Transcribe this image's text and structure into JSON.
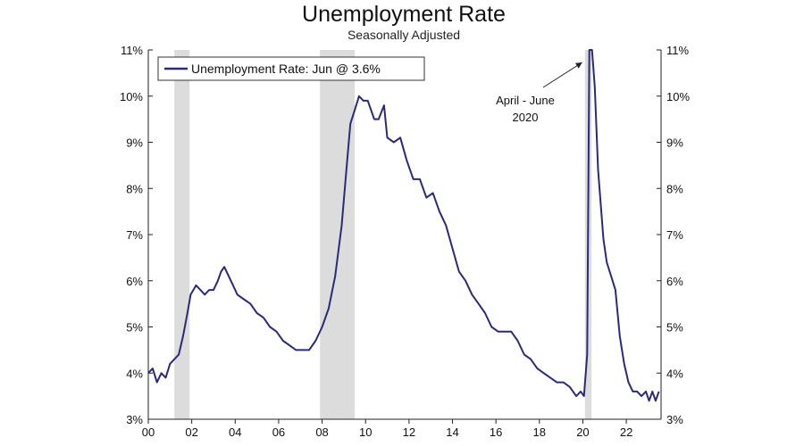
{
  "chart_data": {
    "type": "line",
    "title": "Unemployment Rate",
    "subtitle": "Seasonally Adjusted",
    "xlabel": "",
    "ylabel": "",
    "xlim": [
      2000,
      2023.6
    ],
    "ylim": [
      3,
      11
    ],
    "x_ticks": [
      {
        "value": 2000,
        "label": "00"
      },
      {
        "value": 2002,
        "label": "02"
      },
      {
        "value": 2004,
        "label": "04"
      },
      {
        "value": 2006,
        "label": "06"
      },
      {
        "value": 2008,
        "label": "08"
      },
      {
        "value": 2010,
        "label": "10"
      },
      {
        "value": 2012,
        "label": "12"
      },
      {
        "value": 2014,
        "label": "14"
      },
      {
        "value": 2016,
        "label": "16"
      },
      {
        "value": 2018,
        "label": "18"
      },
      {
        "value": 2020,
        "label": "20"
      },
      {
        "value": 2022,
        "label": "22"
      }
    ],
    "y_ticks": [
      {
        "value": 3,
        "label": "3%"
      },
      {
        "value": 4,
        "label": "4%"
      },
      {
        "value": 5,
        "label": "5%"
      },
      {
        "value": 6,
        "label": "6%"
      },
      {
        "value": 7,
        "label": "7%"
      },
      {
        "value": 8,
        "label": "8%"
      },
      {
        "value": 9,
        "label": "9%"
      },
      {
        "value": 10,
        "label": "10%"
      },
      {
        "value": 11,
        "label": "11%"
      }
    ],
    "grid": false,
    "legend": {
      "placement": "top-left",
      "entries": [
        "Unemployment Rate: Jun @ 3.6%"
      ]
    },
    "recessions": [
      [
        2001.2,
        2001.9
      ],
      [
        2007.9,
        2009.5
      ],
      [
        2020.1,
        2020.4
      ]
    ],
    "annotation": {
      "lines": [
        "April - June",
        "2020"
      ],
      "target_x": 2020.3,
      "target_y": 11
    },
    "series": [
      {
        "name": "Unemployment Rate: Jun @ 3.6%",
        "color": "#2b2a77",
        "points": [
          [
            2000.0,
            4.0
          ],
          [
            2000.2,
            4.1
          ],
          [
            2000.4,
            3.8
          ],
          [
            2000.6,
            4.0
          ],
          [
            2000.8,
            3.9
          ],
          [
            2001.0,
            4.2
          ],
          [
            2001.2,
            4.3
          ],
          [
            2001.4,
            4.4
          ],
          [
            2001.6,
            4.8
          ],
          [
            2001.8,
            5.3
          ],
          [
            2001.95,
            5.7
          ],
          [
            2002.2,
            5.9
          ],
          [
            2002.4,
            5.8
          ],
          [
            2002.6,
            5.7
          ],
          [
            2002.8,
            5.8
          ],
          [
            2003.0,
            5.8
          ],
          [
            2003.2,
            6.0
          ],
          [
            2003.35,
            6.2
          ],
          [
            2003.5,
            6.3
          ],
          [
            2003.7,
            6.1
          ],
          [
            2003.9,
            5.9
          ],
          [
            2004.1,
            5.7
          ],
          [
            2004.4,
            5.6
          ],
          [
            2004.7,
            5.5
          ],
          [
            2005.0,
            5.3
          ],
          [
            2005.3,
            5.2
          ],
          [
            2005.6,
            5.0
          ],
          [
            2005.9,
            4.9
          ],
          [
            2006.2,
            4.7
          ],
          [
            2006.5,
            4.6
          ],
          [
            2006.8,
            4.5
          ],
          [
            2007.1,
            4.5
          ],
          [
            2007.4,
            4.5
          ],
          [
            2007.7,
            4.7
          ],
          [
            2008.0,
            5.0
          ],
          [
            2008.3,
            5.4
          ],
          [
            2008.6,
            6.1
          ],
          [
            2008.9,
            7.2
          ],
          [
            2009.1,
            8.3
          ],
          [
            2009.3,
            9.4
          ],
          [
            2009.5,
            9.7
          ],
          [
            2009.7,
            10.0
          ],
          [
            2009.9,
            9.9
          ],
          [
            2010.1,
            9.9
          ],
          [
            2010.4,
            9.5
          ],
          [
            2010.6,
            9.5
          ],
          [
            2010.85,
            9.8
          ],
          [
            2011.0,
            9.1
          ],
          [
            2011.3,
            9.0
          ],
          [
            2011.6,
            9.1
          ],
          [
            2011.9,
            8.6
          ],
          [
            2012.2,
            8.2
          ],
          [
            2012.5,
            8.2
          ],
          [
            2012.8,
            7.8
          ],
          [
            2013.1,
            7.9
          ],
          [
            2013.4,
            7.5
          ],
          [
            2013.7,
            7.2
          ],
          [
            2014.0,
            6.7
          ],
          [
            2014.3,
            6.2
          ],
          [
            2014.6,
            6.0
          ],
          [
            2014.9,
            5.7
          ],
          [
            2015.2,
            5.5
          ],
          [
            2015.5,
            5.3
          ],
          [
            2015.8,
            5.0
          ],
          [
            2016.1,
            4.9
          ],
          [
            2016.4,
            4.9
          ],
          [
            2016.7,
            4.9
          ],
          [
            2017.0,
            4.7
          ],
          [
            2017.3,
            4.4
          ],
          [
            2017.6,
            4.3
          ],
          [
            2017.9,
            4.1
          ],
          [
            2018.2,
            4.0
          ],
          [
            2018.5,
            3.9
          ],
          [
            2018.8,
            3.8
          ],
          [
            2019.1,
            3.8
          ],
          [
            2019.4,
            3.7
          ],
          [
            2019.7,
            3.5
          ],
          [
            2019.9,
            3.6
          ],
          [
            2020.05,
            3.5
          ],
          [
            2020.2,
            4.4
          ],
          [
            2020.3,
            11.0
          ],
          [
            2020.42,
            11.0
          ],
          [
            2020.55,
            10.2
          ],
          [
            2020.7,
            8.4
          ],
          [
            2020.8,
            7.8
          ],
          [
            2020.95,
            6.9
          ],
          [
            2021.1,
            6.4
          ],
          [
            2021.3,
            6.1
          ],
          [
            2021.5,
            5.8
          ],
          [
            2021.7,
            4.8
          ],
          [
            2021.9,
            4.2
          ],
          [
            2022.1,
            3.8
          ],
          [
            2022.3,
            3.6
          ],
          [
            2022.5,
            3.6
          ],
          [
            2022.7,
            3.5
          ],
          [
            2022.9,
            3.6
          ],
          [
            2023.05,
            3.4
          ],
          [
            2023.2,
            3.6
          ],
          [
            2023.35,
            3.4
          ],
          [
            2023.5,
            3.6
          ]
        ]
      }
    ]
  }
}
